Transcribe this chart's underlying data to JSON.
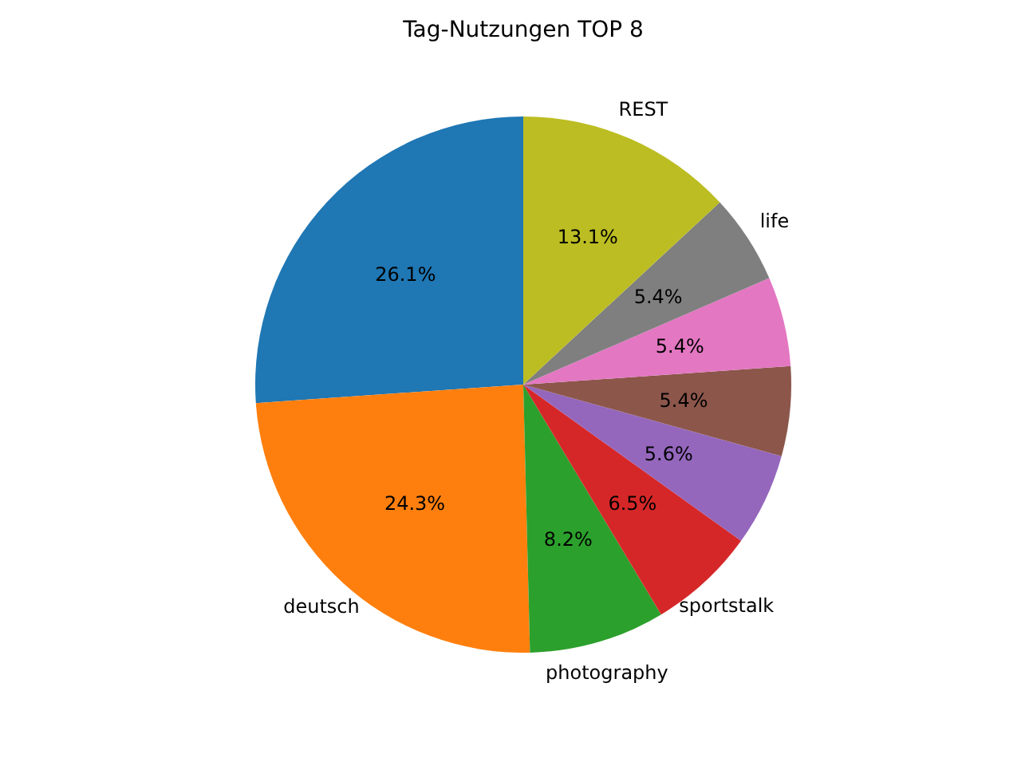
{
  "chart_data": {
    "type": "pie",
    "title": "Tag-Nutzungen TOP 8",
    "categories": [
      null,
      "deutsch",
      "photography",
      "sportstalk",
      null,
      null,
      null,
      "life",
      "REST"
    ],
    "values": [
      26.1,
      24.3,
      8.2,
      6.5,
      5.6,
      5.4,
      5.4,
      5.4,
      13.1
    ],
    "colors": [
      "#1f77b4",
      "#ff7f0e",
      "#2ca02c",
      "#d62728",
      "#9467bd",
      "#8c564b",
      "#e377c2",
      "#7f7f7f",
      "#bcbd22"
    ],
    "value_labels": [
      "26.1%",
      "24.3%",
      "8.2%",
      "6.5%",
      "5.6%",
      "5.4%",
      "5.4%",
      "5.4%",
      "13.1%"
    ]
  }
}
